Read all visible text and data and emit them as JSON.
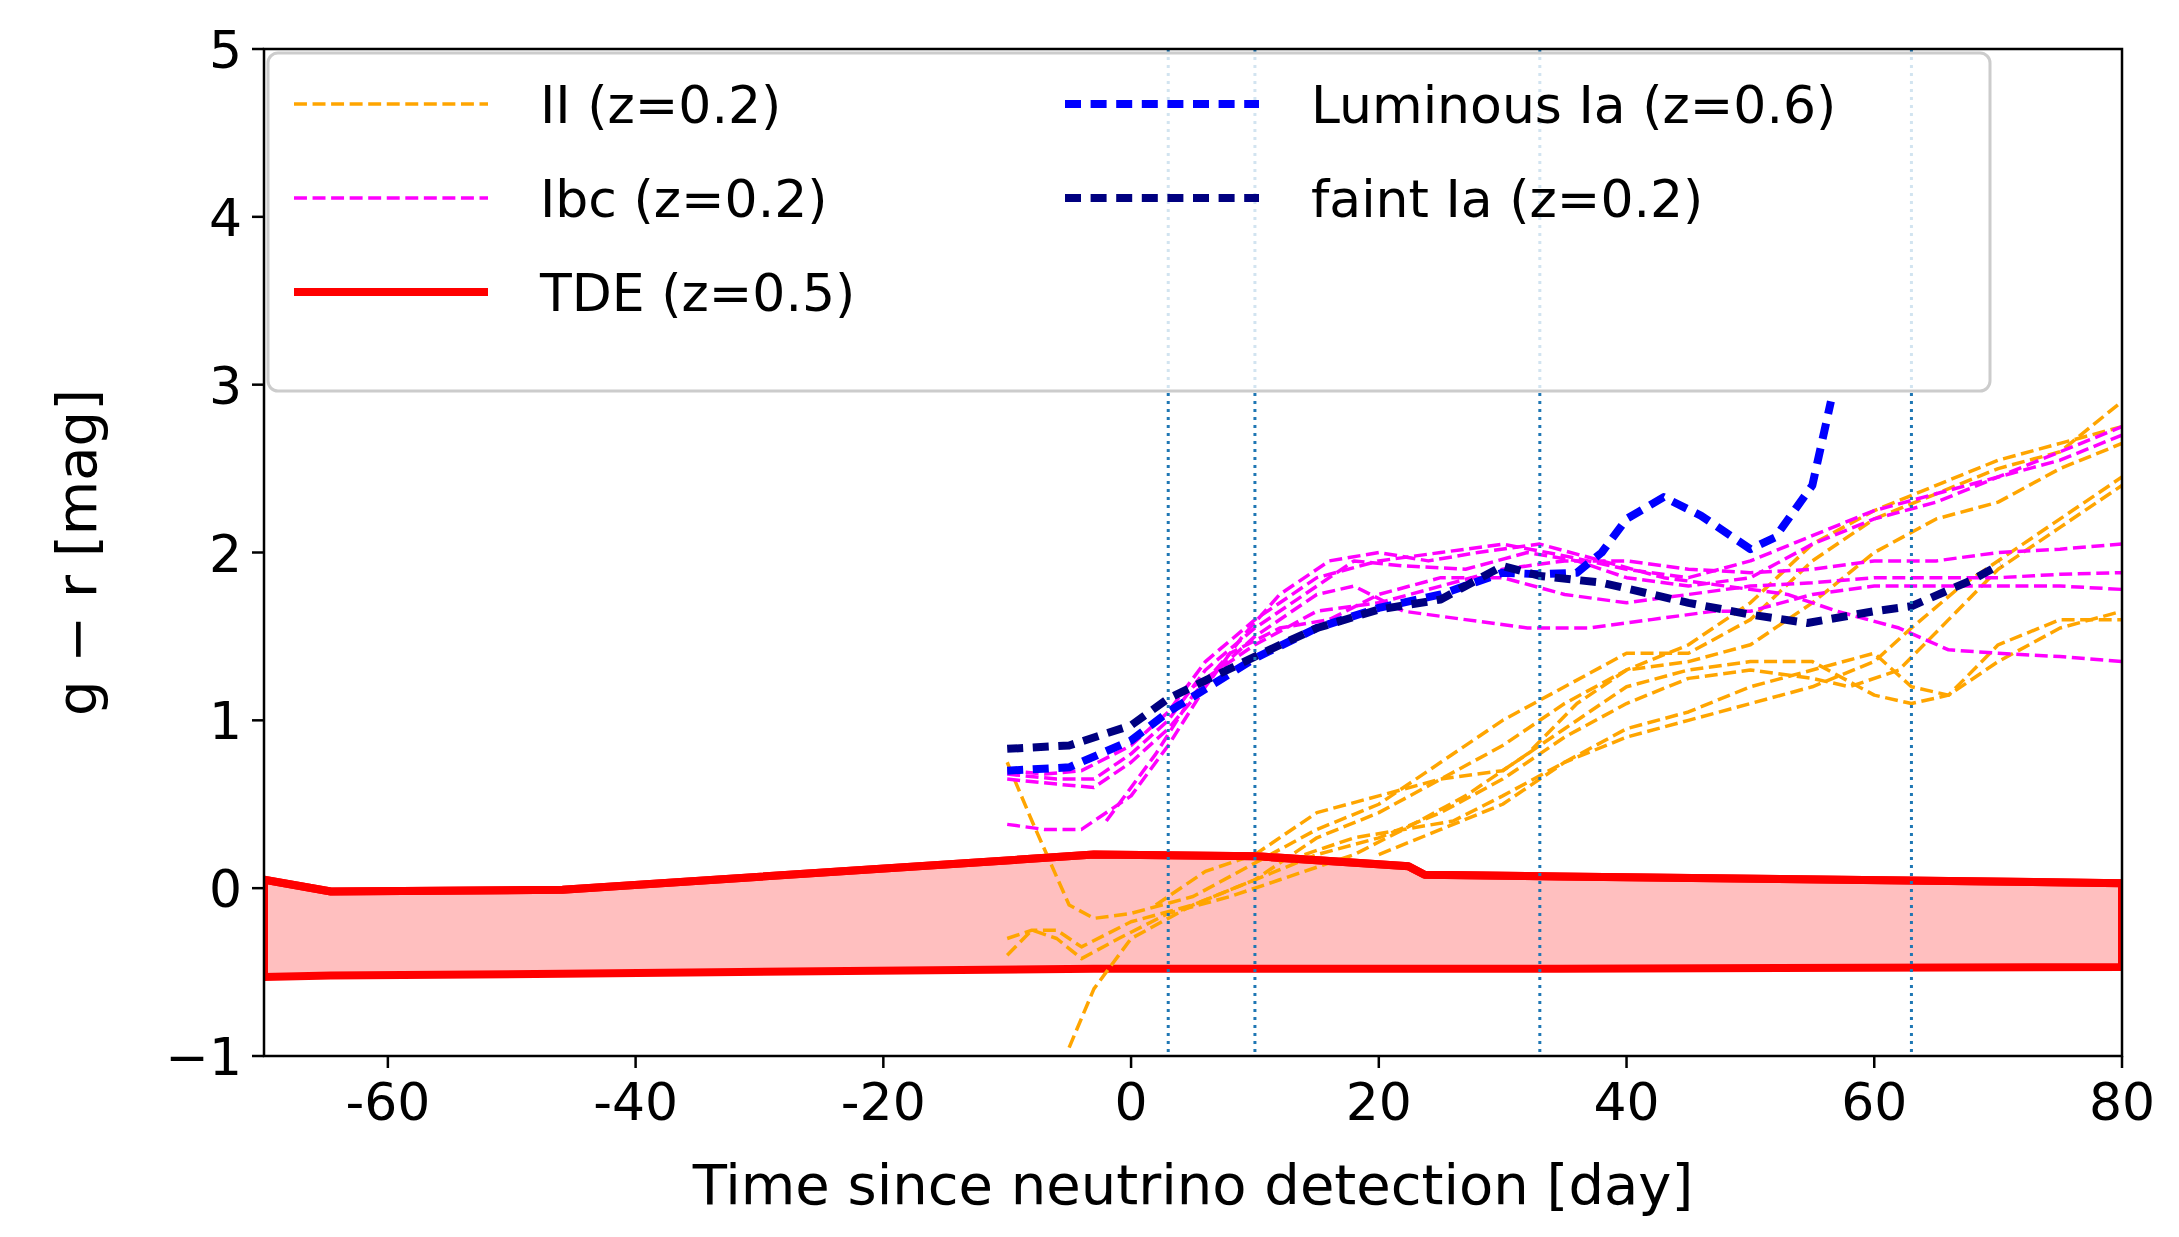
{
  "chart_data": {
    "type": "line",
    "xlabel": "Time since neutrino detection [day]",
    "ylabel": "g − r [mag]",
    "xlim": [
      -70,
      80
    ],
    "xticks": [
      -60,
      -40,
      -20,
      0,
      20,
      40,
      60,
      80
    ],
    "ylim": [
      -1,
      5
    ],
    "yticks": [
      {
        "value": -1,
        "label": "−1"
      },
      0,
      1,
      2,
      3,
      4,
      5
    ],
    "grid": false,
    "legend": "top left",
    "ref_lines": [
      {
        "axis": "x",
        "value": 3,
        "color": "#1f77b4",
        "line_style": "dotted"
      },
      {
        "axis": "x",
        "value": 10,
        "color": "#1f77b4",
        "line_style": "dotted"
      },
      {
        "axis": "x",
        "value": 33,
        "color": "#1f77b4",
        "line_style": "dotted"
      },
      {
        "axis": "x",
        "value": 63,
        "color": "#1f77b4",
        "line_style": "dotted"
      }
    ],
    "series": [
      {
        "name": "II (z=0.2)",
        "type": "line",
        "color": "#ffa500",
        "line_style": "dashed",
        "x": [
          -10,
          -8,
          -5,
          -3,
          0,
          5,
          10,
          15,
          20,
          25,
          30,
          35,
          40,
          45,
          50,
          55,
          60,
          65,
          70,
          75,
          80
        ],
        "values": [
          0.75,
          0.4,
          -0.1,
          -0.18,
          -0.15,
          -0.05,
          0.15,
          0.35,
          0.5,
          0.75,
          1.0,
          1.2,
          1.4,
          1.4,
          1.6,
          1.95,
          2.2,
          2.35,
          2.5,
          2.6,
          2.9
        ]
      },
      {
        "type": "line",
        "color": "#ffa500",
        "line_style": "dashed",
        "x": [
          -10,
          -8,
          -6,
          -4,
          0,
          5,
          10,
          15,
          20,
          25,
          30,
          35,
          40,
          45,
          50,
          55,
          60,
          65,
          70,
          75,
          80
        ],
        "values": [
          -0.3,
          -0.25,
          -0.25,
          -0.35,
          -0.2,
          -0.1,
          0.05,
          0.3,
          0.45,
          0.65,
          0.85,
          1.1,
          1.3,
          1.45,
          1.7,
          2.05,
          2.25,
          2.4,
          2.55,
          2.65,
          2.75
        ]
      },
      {
        "type": "line",
        "color": "#ffa500",
        "line_style": "dashed",
        "x": [
          -10,
          -8,
          -6,
          -4,
          -1,
          3,
          8,
          12,
          18,
          22,
          27,
          32,
          36,
          40,
          45,
          50,
          55,
          60,
          65,
          70,
          75,
          80
        ],
        "values": [
          -0.4,
          -0.25,
          -0.3,
          -0.42,
          -0.3,
          -0.15,
          -0.05,
          0.05,
          0.2,
          0.35,
          0.55,
          0.8,
          1.1,
          1.3,
          1.35,
          1.45,
          1.7,
          2.0,
          2.2,
          2.3,
          2.5,
          2.65
        ]
      },
      {
        "type": "line",
        "color": "#ffa500",
        "line_style": "dashed",
        "x": [
          -5,
          -3,
          0,
          5,
          10,
          15,
          20,
          25,
          30,
          35,
          40,
          45,
          50,
          55,
          58,
          62,
          66,
          70,
          75,
          80
        ],
        "values": [
          -0.95,
          -0.6,
          -0.3,
          -0.1,
          0.05,
          0.2,
          0.3,
          0.45,
          0.65,
          0.9,
          1.1,
          1.25,
          1.3,
          1.25,
          1.2,
          1.3,
          1.6,
          1.9,
          2.15,
          2.4
        ]
      },
      {
        "type": "line",
        "color": "#ffa500",
        "line_style": "dashed",
        "x": [
          2,
          6,
          10,
          15,
          20,
          25,
          30,
          35,
          40,
          45,
          50,
          55,
          60,
          63,
          66,
          70,
          75,
          80
        ],
        "values": [
          -0.1,
          0.1,
          0.2,
          0.45,
          0.55,
          0.65,
          0.7,
          0.95,
          1.2,
          1.3,
          1.35,
          1.35,
          1.15,
          1.1,
          1.15,
          1.45,
          1.6,
          1.6
        ]
      },
      {
        "type": "line",
        "color": "#ffa500",
        "line_style": "dashed",
        "x": [
          14,
          18,
          22,
          26,
          30,
          35,
          40,
          45,
          50,
          55,
          60,
          63,
          66,
          70,
          75,
          80
        ],
        "values": [
          0.2,
          0.3,
          0.35,
          0.4,
          0.55,
          0.75,
          0.95,
          1.05,
          1.2,
          1.3,
          1.4,
          1.2,
          1.15,
          1.35,
          1.55,
          1.65
        ]
      },
      {
        "type": "line",
        "color": "#ffa500",
        "line_style": "dashed",
        "x": [
          20,
          25,
          30,
          35,
          40,
          45,
          50,
          55,
          60,
          63,
          67,
          72,
          76,
          80
        ],
        "values": [
          0.2,
          0.35,
          0.5,
          0.75,
          0.9,
          1.0,
          1.1,
          1.2,
          1.35,
          1.55,
          1.8,
          2.05,
          2.25,
          2.45
        ]
      },
      {
        "name": "Ibc (z=0.2)",
        "type": "line",
        "color": "#ff00ff",
        "line_style": "dashed",
        "x": [
          -10,
          -7,
          -4,
          0,
          3,
          6,
          10,
          15,
          20,
          25,
          30,
          35,
          40,
          45,
          50,
          55,
          60,
          65,
          70,
          75,
          80
        ],
        "values": [
          0.7,
          0.68,
          0.7,
          0.85,
          1.05,
          1.35,
          1.6,
          1.85,
          1.95,
          2.0,
          2.05,
          1.98,
          1.9,
          1.85,
          1.95,
          2.1,
          2.25,
          2.35,
          2.45,
          2.55,
          2.7
        ]
      },
      {
        "type": "line",
        "color": "#ff00ff",
        "line_style": "dashed",
        "x": [
          -10,
          -6,
          -3,
          0,
          3,
          6,
          10,
          14,
          18,
          22,
          27,
          32,
          36,
          40,
          45,
          50,
          55,
          60,
          65,
          70,
          75,
          80
        ],
        "values": [
          0.68,
          0.65,
          0.65,
          0.8,
          1.0,
          1.3,
          1.55,
          1.75,
          1.95,
          1.92,
          1.9,
          2.0,
          1.95,
          1.85,
          1.8,
          1.85,
          2.05,
          2.2,
          2.3,
          2.45,
          2.6,
          2.75
        ]
      },
      {
        "type": "line",
        "color": "#ff00ff",
        "line_style": "dashed",
        "x": [
          -10,
          -6,
          -3,
          0,
          3,
          7,
          10,
          15,
          18,
          22,
          27,
          32,
          37,
          42,
          47,
          50,
          55,
          60,
          65,
          70,
          75,
          80
        ],
        "values": [
          0.65,
          0.62,
          0.6,
          0.75,
          0.95,
          1.3,
          1.5,
          1.75,
          1.8,
          1.65,
          1.6,
          1.55,
          1.55,
          1.6,
          1.65,
          1.65,
          1.75,
          1.8,
          1.8,
          1.8,
          1.8,
          1.78
        ]
      },
      {
        "type": "line",
        "color": "#ff00ff",
        "line_style": "dashed",
        "x": [
          -10,
          -7,
          -4,
          0,
          3,
          6,
          9,
          12,
          16,
          20,
          24,
          28,
          33,
          38,
          43,
          48,
          53,
          57,
          62,
          66,
          70,
          75,
          80
        ],
        "values": [
          0.38,
          0.35,
          0.35,
          0.55,
          0.85,
          1.2,
          1.5,
          1.75,
          1.95,
          2.0,
          1.95,
          2.0,
          2.05,
          1.95,
          1.85,
          1.8,
          1.75,
          1.65,
          1.55,
          1.42,
          1.4,
          1.38,
          1.35
        ]
      },
      {
        "type": "line",
        "color": "#ff00ff",
        "line_style": "dashed",
        "x": [
          -2,
          2,
          5,
          8,
          12,
          16,
          20,
          25,
          30,
          35,
          40,
          45,
          50,
          55,
          60,
          65,
          70,
          75,
          80
        ],
        "values": [
          0.4,
          0.8,
          1.15,
          1.4,
          1.55,
          1.6,
          1.75,
          1.85,
          1.85,
          1.75,
          1.7,
          1.75,
          1.8,
          1.82,
          1.85,
          1.85,
          1.85,
          1.87,
          1.88
        ]
      },
      {
        "type": "line",
        "color": "#ff00ff",
        "line_style": "dashed",
        "x": [
          5,
          10,
          15,
          20,
          25,
          30,
          35,
          40,
          45,
          50,
          55,
          60,
          65,
          70,
          75,
          80
        ],
        "values": [
          1.2,
          1.45,
          1.65,
          1.7,
          1.8,
          1.9,
          1.95,
          1.95,
          1.9,
          1.88,
          1.9,
          1.95,
          1.95,
          2.0,
          2.02,
          2.05
        ]
      },
      {
        "name": "TDE (z=0.5)",
        "color": "#ff0000",
        "line_style": "solid",
        "x": [
          -70,
          -64.6,
          -45.9,
          -3,
          10.2,
          22.4,
          23.7,
          34.6,
          80
        ],
        "values": [
          0.05,
          -0.02,
          -0.01,
          0.2,
          0.19,
          0.13,
          0.08,
          0.07,
          0.03
        ],
        "upper": [
          0.05,
          -0.02,
          -0.01,
          0.2,
          0.19,
          0.13,
          0.08,
          0.07,
          0.03
        ],
        "lower": [
          -0.53,
          -0.52,
          -0.51,
          -0.48,
          -0.48,
          -0.48,
          -0.48,
          -0.48,
          -0.47
        ]
      },
      {
        "name": "Luminous Ia (z=0.6)",
        "type": "line",
        "color": "#0000ff",
        "line_style": "dotted",
        "x": [
          -10,
          -5,
          0,
          3,
          10,
          15,
          20,
          25,
          30,
          33,
          36,
          38,
          40,
          43,
          46,
          50,
          52,
          55,
          56.5
        ],
        "values": [
          0.7,
          0.72,
          0.88,
          1.05,
          1.37,
          1.55,
          1.67,
          1.75,
          1.88,
          1.87,
          1.88,
          2.0,
          2.2,
          2.33,
          2.22,
          2.02,
          2.09,
          2.4,
          2.9
        ]
      },
      {
        "name": "faint Ia (z=0.2)",
        "type": "line",
        "color": "#000080",
        "line_style": "dotted",
        "x": [
          -10,
          -5,
          0,
          3,
          10,
          15,
          20,
          25,
          30,
          33,
          38,
          45,
          50,
          54.6,
          60,
          63,
          68,
          70.2
        ],
        "values": [
          0.83,
          0.85,
          0.97,
          1.13,
          1.38,
          1.55,
          1.66,
          1.72,
          1.92,
          1.86,
          1.82,
          1.7,
          1.63,
          1.58,
          1.65,
          1.68,
          1.84,
          1.93
        ]
      }
    ]
  }
}
